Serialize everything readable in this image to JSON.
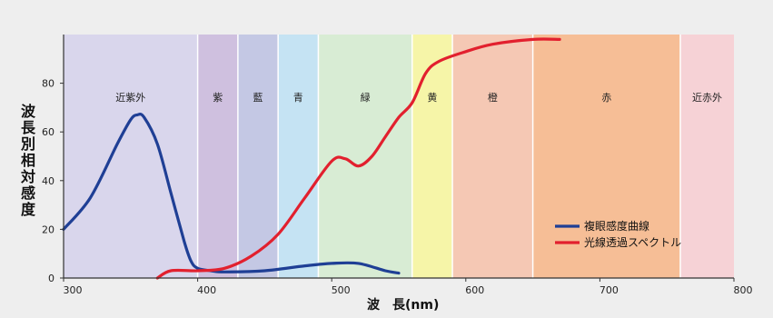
{
  "chart_data": {
    "type": "line",
    "title": "",
    "xlabel": "波　長(nm)",
    "ylabel": "波長別相対感度",
    "xlim": [
      300,
      800
    ],
    "ylim": [
      0,
      100
    ],
    "x_ticks": [
      300,
      400,
      500,
      600,
      700,
      800
    ],
    "y_ticks": [
      0,
      20,
      40,
      60,
      80
    ],
    "grid": false,
    "legend_position": "right",
    "color_bands": [
      {
        "label": "近紫外",
        "range": [
          300,
          400
        ],
        "color": "#d9d6ec"
      },
      {
        "label": "紫",
        "range": [
          400,
          430
        ],
        "color": "#cfc0df"
      },
      {
        "label": "藍",
        "range": [
          430,
          460
        ],
        "color": "#c4c8e4"
      },
      {
        "label": "青",
        "range": [
          460,
          490
        ],
        "color": "#c5e3f3"
      },
      {
        "label": "緑",
        "range": [
          490,
          560
        ],
        "color": "#d8ecd4"
      },
      {
        "label": "黄",
        "range": [
          560,
          590
        ],
        "color": "#f6f5a8"
      },
      {
        "label": "橙",
        "range": [
          590,
          650
        ],
        "color": "#f5c8b4"
      },
      {
        "label": "赤",
        "range": [
          650,
          760
        ],
        "color": "#f6be96"
      },
      {
        "label": "近赤外",
        "range": [
          760,
          800
        ],
        "color": "#f6d2d6"
      }
    ],
    "series": [
      {
        "name": "複眼感度曲線",
        "color": "#1f3f95",
        "x": [
          300,
          320,
          340,
          350,
          355,
          360,
          370,
          380,
          390,
          395,
          400,
          410,
          420,
          450,
          480,
          500,
          520,
          540,
          550
        ],
        "y": [
          20,
          33,
          55,
          65,
          67,
          66,
          55,
          35,
          15,
          7,
          4,
          3,
          2.5,
          3,
          5,
          6,
          6,
          3,
          2
        ]
      },
      {
        "name": "光線透過スペクトル",
        "color": "#e2202e",
        "x": [
          370,
          380,
          400,
          420,
          440,
          460,
          480,
          500,
          510,
          520,
          530,
          540,
          550,
          560,
          570,
          580,
          600,
          620,
          650,
          670
        ],
        "y": [
          0,
          3,
          3,
          4,
          9,
          18,
          33,
          48,
          49,
          46,
          50,
          58,
          66,
          72,
          84,
          89,
          93,
          96,
          98,
          98
        ]
      }
    ]
  }
}
